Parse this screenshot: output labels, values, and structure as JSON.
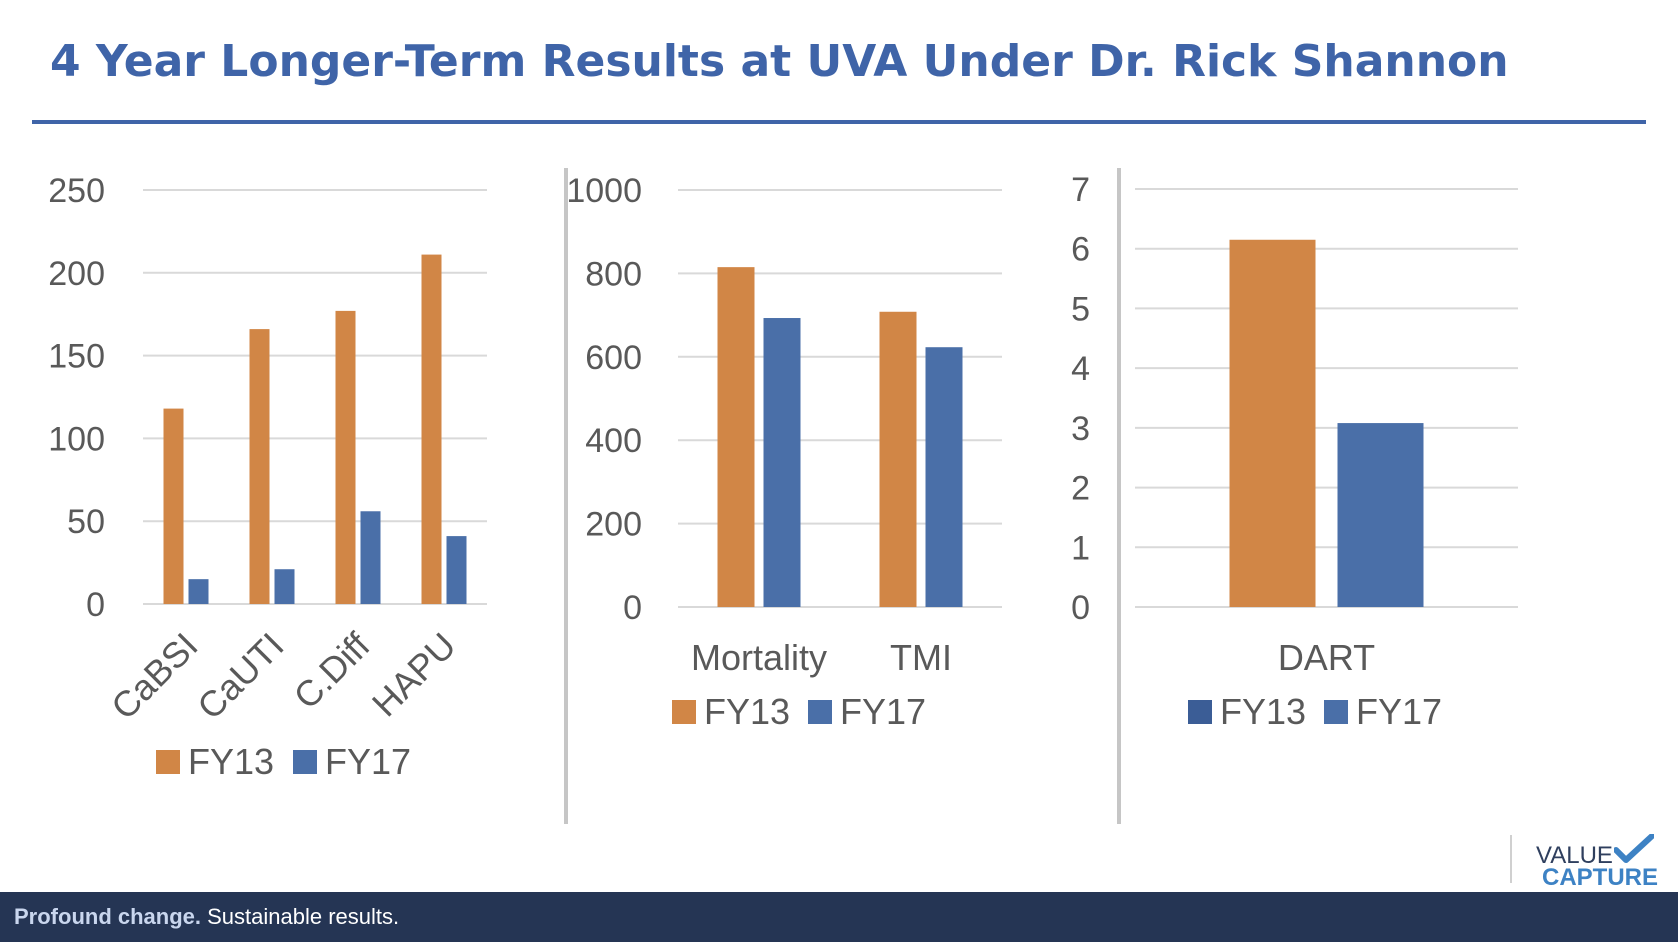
{
  "title": "4 Year Longer-Term Results at UVA Under Dr. Rick Shannon",
  "footer": {
    "strong": "Profound change.",
    "rest": " Sustainable results."
  },
  "logo": {
    "line1": "VALUE",
    "line2": "CAPTURE"
  },
  "colors": {
    "fy13": "#d18646",
    "fy17": "#4a6fa8",
    "fy13_legend_dart": "#3b5d96",
    "title": "#3f64a8",
    "footer": "#253554"
  },
  "chart_data": [
    {
      "type": "bar",
      "categories": [
        "CaBSI",
        "CaUTI",
        "C.Diff",
        "HAPU"
      ],
      "series": [
        {
          "name": "FY13",
          "values": [
            118,
            166,
            177,
            211
          ]
        },
        {
          "name": "FY17",
          "values": [
            15,
            21,
            56,
            41
          ]
        }
      ],
      "ylim": [
        0,
        250
      ],
      "yticks": [
        "0",
        "50",
        "100",
        "150",
        "200",
        "250"
      ],
      "grid": true,
      "legend": "bottom",
      "rotated_category_labels": true
    },
    {
      "type": "bar",
      "categories": [
        "Mortality",
        "TMI"
      ],
      "series": [
        {
          "name": "FY13",
          "values": [
            815,
            708
          ]
        },
        {
          "name": "FY17",
          "values": [
            693,
            623
          ]
        }
      ],
      "ylim": [
        0,
        1000
      ],
      "yticks": [
        "0",
        "200",
        "400",
        "600",
        "800",
        "1000"
      ],
      "grid": true,
      "legend": "bottom"
    },
    {
      "type": "bar",
      "categories": [
        "DART"
      ],
      "series": [
        {
          "name": "FY13",
          "values": [
            6.15
          ]
        },
        {
          "name": "FY17",
          "values": [
            3.08
          ]
        }
      ],
      "ylim": [
        0,
        7
      ],
      "yticks": [
        "0",
        "1",
        "2",
        "3",
        "4",
        "5",
        "6",
        "7"
      ],
      "grid": true,
      "legend": "bottom"
    }
  ]
}
